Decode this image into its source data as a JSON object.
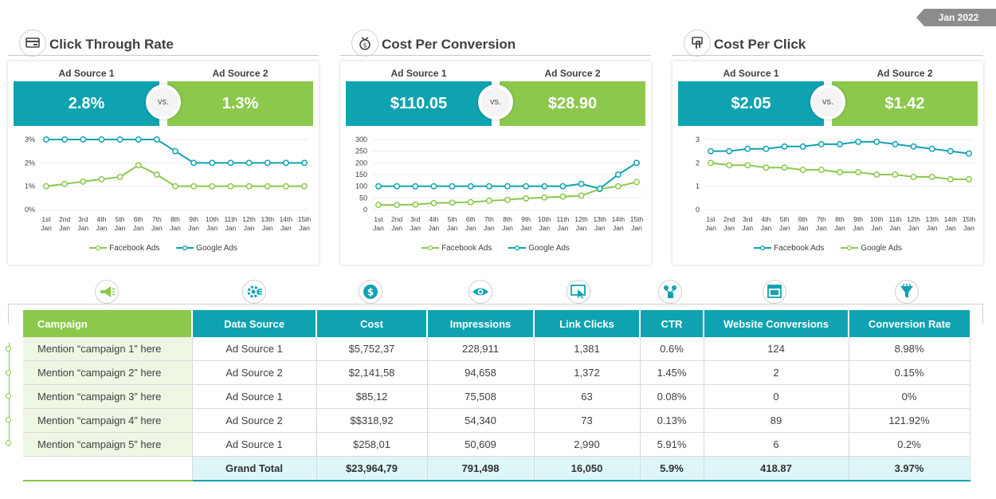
{
  "date_tag": "Jan 2022",
  "colors": {
    "teal": "#0fa3b1",
    "green": "#8cc84b"
  },
  "x_labels_top": [
    "1st",
    "2nd",
    "3rd",
    "4th",
    "5th",
    "6th",
    "7th",
    "8th",
    "9th",
    "10th",
    "11th",
    "12th",
    "13th",
    "14th",
    "15th"
  ],
  "x_labels_bottom": "Jan",
  "panels": [
    {
      "title": "Click  Through Rate",
      "icon": "card-payment-icon",
      "source1_label": "Ad Source 1",
      "source2_label": "Ad Source 2",
      "value1": "2.8%",
      "value2": "1.3%",
      "vs": "vs."
    },
    {
      "title": "Cost Per Conversion",
      "icon": "money-bag-icon",
      "source1_label": "Ad Source 1",
      "source2_label": "Ad Source 2",
      "value1": "$110.05",
      "value2": "$28.90",
      "vs": "vs."
    },
    {
      "title": "Cost Per Click",
      "icon": "hand-click-icon",
      "source1_label": "Ad Source 1",
      "source2_label": "Ad Source 2",
      "value1": "$2.05",
      "value2": "$1.42",
      "vs": "vs."
    }
  ],
  "chart_data": [
    {
      "type": "line",
      "x": [
        "1st Jan",
        "2nd Jan",
        "3rd Jan",
        "4th Jan",
        "5th Jan",
        "6th Jan",
        "7th Jan",
        "8th Jan",
        "9th Jan",
        "10th Jan",
        "11th Jan",
        "12th Jan",
        "13th Jan",
        "14th Jan",
        "15th Jan"
      ],
      "ylim": [
        0,
        3
      ],
      "yticks": [
        "0%",
        "1%",
        "2%",
        "3%"
      ],
      "series": [
        {
          "name": "Facebook Ads",
          "color": "#8cc84b",
          "values": [
            1.0,
            1.1,
            1.2,
            1.3,
            1.4,
            1.9,
            1.5,
            1.0,
            1.0,
            1.0,
            1.0,
            1.0,
            1.0,
            1.0,
            1.0
          ]
        },
        {
          "name": "Google Ads",
          "color": "#0fa3b1",
          "values": [
            3.0,
            3.0,
            3.0,
            3.0,
            3.0,
            3.0,
            3.0,
            2.5,
            2.0,
            2.0,
            2.0,
            2.0,
            2.0,
            2.0,
            2.0
          ]
        }
      ],
      "legend": [
        "Facebook Ads",
        "Google Ads"
      ]
    },
    {
      "type": "line",
      "x": [
        "1st Jan",
        "2nd Jan",
        "3rd Jan",
        "4th Jan",
        "5th Jan",
        "6th Jan",
        "7th Jan",
        "8th Jan",
        "9th Jan",
        "10th Jan",
        "11th Jan",
        "12th Jan",
        "13th Jan",
        "14th Jan",
        "15th Jan"
      ],
      "ylim": [
        0,
        300
      ],
      "yticks": [
        "0",
        "50",
        "100",
        "150",
        "200",
        "250",
        "300"
      ],
      "series": [
        {
          "name": "Facebook Ads",
          "color": "#8cc84b",
          "values": [
            20,
            20,
            22,
            28,
            30,
            32,
            38,
            42,
            48,
            52,
            56,
            60,
            88,
            100,
            118
          ]
        },
        {
          "name": "Google Ads",
          "color": "#0fa3b1",
          "values": [
            100,
            100,
            100,
            100,
            100,
            100,
            100,
            100,
            100,
            100,
            100,
            110,
            90,
            150,
            200
          ]
        }
      ],
      "legend": [
        "Facebook Ads",
        "Google Ads"
      ]
    },
    {
      "type": "line",
      "x": [
        "1st Jan",
        "2nd Jan",
        "3rd Jan",
        "4th Jan",
        "5th Jan",
        "6th Jan",
        "7th Jan",
        "8th Jan",
        "9th Jan",
        "10th Jan",
        "11th Jan",
        "12th Jan",
        "13th Jan",
        "14th Jan",
        "15th Jan"
      ],
      "ylim": [
        0,
        3
      ],
      "yticks": [
        "0",
        "1",
        "2",
        "3"
      ],
      "series": [
        {
          "name": "Google Ads",
          "color": "#0fa3b1",
          "values": [
            2.5,
            2.5,
            2.6,
            2.6,
            2.7,
            2.7,
            2.8,
            2.8,
            2.9,
            2.9,
            2.8,
            2.7,
            2.6,
            2.5,
            2.4
          ]
        },
        {
          "name": "Facebook Ads",
          "color": "#8cc84b",
          "values": [
            2.0,
            1.9,
            1.9,
            1.8,
            1.8,
            1.7,
            1.7,
            1.6,
            1.6,
            1.5,
            1.5,
            1.4,
            1.4,
            1.3,
            1.3
          ]
        }
      ],
      "legend": [
        "Facebook Ads",
        "Google Ads"
      ]
    }
  ],
  "table": {
    "headers": [
      "Campaign",
      "Data Source",
      "Cost",
      "Impressions",
      "Link Clicks",
      "CTR",
      "Website Conversions",
      "Conversion Rate"
    ],
    "header_icons": [
      "megaphone-icon",
      "gear-data-icon",
      "dollar-coin-icon",
      "eye-icon",
      "click-screen-icon",
      "network-icon",
      "browser-window-icon",
      "funnel-icon"
    ],
    "rows": [
      [
        "Mention “campaign 1” here",
        "Ad Source 1",
        "$5,752,37",
        "228,911",
        "1,381",
        "0.6%",
        "124",
        "8.98%"
      ],
      [
        "Mention “campaign 2” here",
        "Ad Source 2",
        "$2,141,58",
        "94,658",
        "1,372",
        "1.45%",
        "2",
        "0.15%"
      ],
      [
        "Mention “campaign 3” here",
        "Ad Source 1",
        "$85,12",
        "75,508",
        "63",
        "0.08%",
        "0",
        "0%"
      ],
      [
        "Mention “campaign 4” here",
        "Ad Source 2",
        "$$318,92",
        "54,340",
        "73",
        "0.13%",
        "89",
        "121.92%"
      ],
      [
        "Mention “campaign 5” here",
        "Ad Source 1",
        "$258,01",
        "50,609",
        "2,990",
        "5.91%",
        "6",
        "0.2%"
      ]
    ],
    "total": [
      "",
      "Grand Total",
      "$23,964,79",
      "791,498",
      "16,050",
      "5.9%",
      "418.87",
      "3.97%"
    ]
  }
}
